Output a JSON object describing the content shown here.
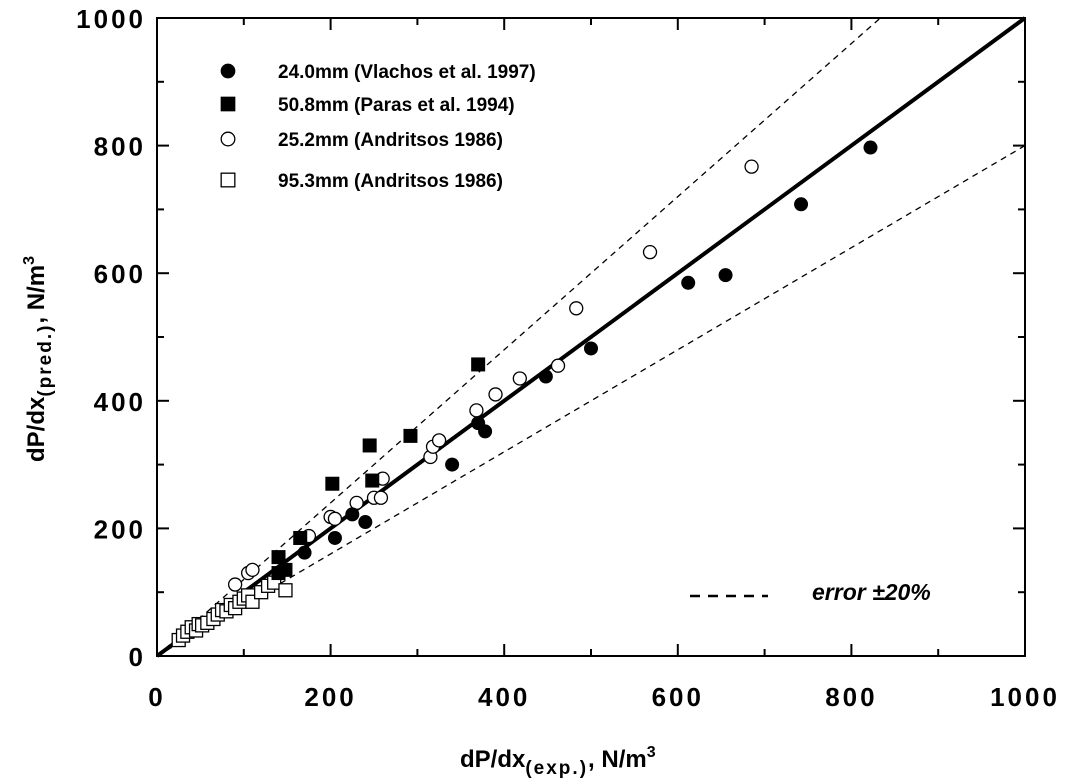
{
  "chart_data": {
    "type": "scatter",
    "title": "",
    "xlabel": "dP/dx",
    "xlabel_sub": "(exp.)",
    "xlabel_unit": ", N/m",
    "xlabel_sup": "3",
    "ylabel": "dP/dx",
    "ylabel_sub": "(pred.)",
    "ylabel_unit": ", N/m",
    "ylabel_sup": "3",
    "xlim": [
      0,
      1000
    ],
    "ylim": [
      0,
      1000
    ],
    "x_ticks": [
      "0",
      "200",
      "400",
      "600",
      "800",
      "1000"
    ],
    "y_ticks": [
      "0",
      "200",
      "400",
      "600",
      "800",
      "1000"
    ],
    "grid": false,
    "legend_position": "top-left",
    "series": [
      {
        "name": "24.0mm (Vlachos et al. 1997)",
        "marker": "filled-circle",
        "color": "#000000",
        "points": [
          [
            170,
            162
          ],
          [
            205,
            185
          ],
          [
            225,
            222
          ],
          [
            240,
            210
          ],
          [
            340,
            300
          ],
          [
            370,
            365
          ],
          [
            378,
            352
          ],
          [
            448,
            438
          ],
          [
            500,
            482
          ],
          [
            612,
            585
          ],
          [
            655,
            597
          ],
          [
            742,
            708
          ],
          [
            822,
            797
          ]
        ]
      },
      {
        "name": "50.8mm (Paras et al. 1994)",
        "marker": "filled-square",
        "color": "#000000",
        "points": [
          [
            140,
            130
          ],
          [
            140,
            155
          ],
          [
            148,
            135
          ],
          [
            165,
            185
          ],
          [
            202,
            270
          ],
          [
            245,
            330
          ],
          [
            248,
            275
          ],
          [
            292,
            345
          ],
          [
            370,
            457
          ]
        ]
      },
      {
        "name": "25.2mm (Andritsos 1986)",
        "marker": "open-circle",
        "color": "#000000",
        "points": [
          [
            90,
            112
          ],
          [
            105,
            130
          ],
          [
            110,
            135
          ],
          [
            175,
            188
          ],
          [
            200,
            218
          ],
          [
            205,
            215
          ],
          [
            230,
            240
          ],
          [
            250,
            248
          ],
          [
            258,
            248
          ],
          [
            260,
            278
          ],
          [
            315,
            312
          ],
          [
            318,
            328
          ],
          [
            325,
            338
          ],
          [
            368,
            385
          ],
          [
            390,
            410
          ],
          [
            418,
            435
          ],
          [
            462,
            455
          ],
          [
            483,
            545
          ],
          [
            568,
            633
          ],
          [
            685,
            767
          ]
        ]
      },
      {
        "name": "95.3mm (Andritsos 1986)",
        "marker": "open-square",
        "color": "#000000",
        "points": [
          [
            25,
            25
          ],
          [
            30,
            32
          ],
          [
            35,
            38
          ],
          [
            40,
            45
          ],
          [
            45,
            40
          ],
          [
            48,
            50
          ],
          [
            52,
            48
          ],
          [
            58,
            52
          ],
          [
            65,
            58
          ],
          [
            70,
            65
          ],
          [
            75,
            72
          ],
          [
            80,
            70
          ],
          [
            85,
            80
          ],
          [
            90,
            75
          ],
          [
            95,
            85
          ],
          [
            100,
            90
          ],
          [
            105,
            95
          ],
          [
            110,
            85
          ],
          [
            120,
            100
          ],
          [
            128,
            110
          ],
          [
            135,
            115
          ],
          [
            148,
            103
          ]
        ]
      }
    ],
    "lines": [
      {
        "name": "",
        "style": "solid",
        "slope": 1.0
      },
      {
        "name": "",
        "style": "dashed",
        "slope": 1.2
      },
      {
        "name": "",
        "style": "dashed",
        "slope": 0.8
      }
    ],
    "annotation": {
      "dash_sample": "- - - -",
      "text": "error  ±20%"
    }
  }
}
